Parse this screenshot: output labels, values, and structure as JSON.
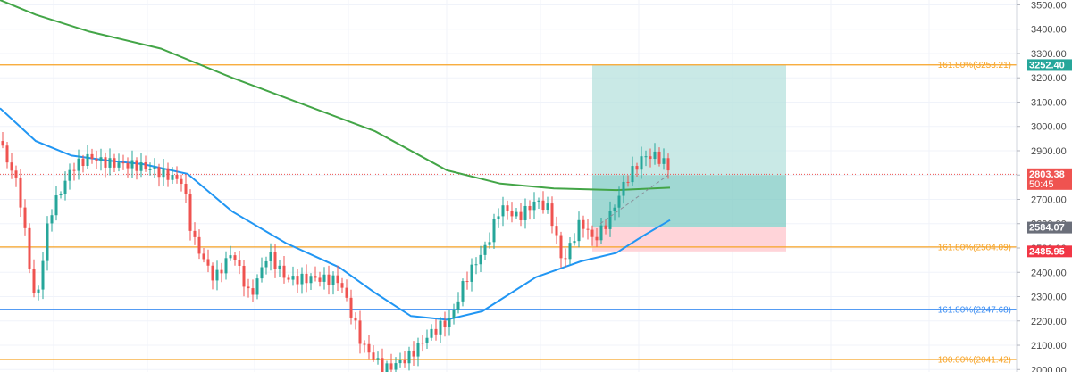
{
  "chart_data": {
    "type": "candlestick",
    "y_axis": {
      "range": [
        1990,
        3520
      ],
      "ticks": [
        2000,
        2100,
        2200,
        2300,
        2400,
        2500,
        2600,
        2700,
        2800,
        2900,
        3000,
        3100,
        3200,
        3300,
        3400,
        3500
      ],
      "tick_labels": [
        "2000.00",
        "2100.00",
        "2200.00",
        "2300.00",
        "2400.00",
        "2500.00",
        "2600.00",
        "2700.00",
        "2800.00",
        "2900.00",
        "3000.00",
        "3100.00",
        "3200.00",
        "3300.00",
        "3400.00",
        "3500.00"
      ]
    },
    "grid": true,
    "horizontal_levels": [
      {
        "label": "161.80%(3253.21)",
        "value": 3253.21,
        "color": "#f7a325"
      },
      {
        "label": "161.80%(2504.09)",
        "value": 2504.09,
        "color": "#f7a325"
      },
      {
        "label": "161.80%(2247.68)",
        "value": 2247.68,
        "color": "#3d8ef2"
      },
      {
        "label": "100.00%(2041.42)",
        "value": 2041.42,
        "color": "#f7a325"
      }
    ],
    "price_tags": [
      {
        "label": "3252.40",
        "value": 3252.4,
        "color": "#26a69a"
      },
      {
        "label": "2803.38",
        "sublabel": "50:45",
        "value": 2803.38,
        "color": "#ef5350"
      },
      {
        "label": "2584.07",
        "value": 2584.07,
        "color": "#6b6f7a"
      },
      {
        "label": "2485.95",
        "value": 2485.95,
        "color": "#f23645"
      }
    ],
    "position": {
      "entry": 2800,
      "target": 3252.4,
      "stop": 2584.07,
      "stop_lower_edge": 2485.95
    },
    "current_price": 2803.38,
    "moving_averages": [
      {
        "color": "#43a547",
        "points": [
          [
            0,
            3520
          ],
          [
            40,
            3460
          ],
          [
            100,
            3390
          ],
          [
            180,
            3320
          ],
          [
            260,
            3200
          ],
          [
            340,
            3090
          ],
          [
            420,
            2980
          ],
          [
            500,
            2820
          ],
          [
            560,
            2765
          ],
          [
            620,
            2745
          ],
          [
            690,
            2738
          ],
          [
            750,
            2748
          ]
        ]
      },
      {
        "color": "#2196f3",
        "points": [
          [
            0,
            3075
          ],
          [
            40,
            2940
          ],
          [
            80,
            2880
          ],
          [
            120,
            2860
          ],
          [
            160,
            2845
          ],
          [
            210,
            2805
          ],
          [
            260,
            2650
          ],
          [
            320,
            2520
          ],
          [
            380,
            2420
          ],
          [
            420,
            2315
          ],
          [
            460,
            2220
          ],
          [
            500,
            2205
          ],
          [
            540,
            2240
          ],
          [
            600,
            2380
          ],
          [
            650,
            2445
          ],
          [
            690,
            2480
          ],
          [
            720,
            2550
          ],
          [
            750,
            2615
          ]
        ]
      }
    ]
  }
}
